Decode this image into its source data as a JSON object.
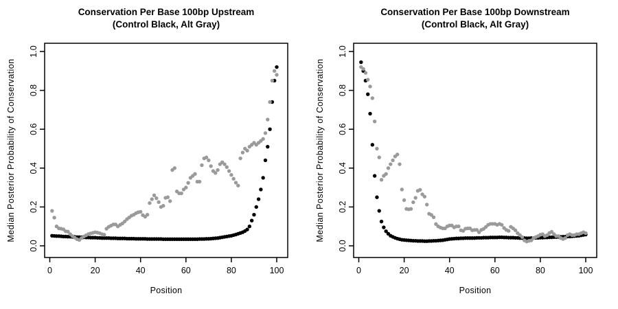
{
  "figure": {
    "bg_color": "#ffffff",
    "point_colors": {
      "control": "#000000",
      "alt": "#9a9a9a"
    },
    "axis_color": "#000000"
  },
  "chart_data": [
    {
      "type": "scatter",
      "panel": "upstream",
      "title": "Conservation Per Base 100bp Upstream",
      "subtitle": "(Control Black, Alt Gray)",
      "xlabel": "Position",
      "ylabel": "Median Posterior Probability of Conservation",
      "xticks": [
        0,
        20,
        40,
        60,
        80,
        100
      ],
      "yticks": [
        "0.0",
        "0.2",
        "0.4",
        "0.6",
        "0.8",
        "1.0"
      ],
      "xlim": [
        0,
        100
      ],
      "ylim": [
        0,
        1
      ],
      "grid": false,
      "x_start": 1,
      "x_step": 1,
      "series": [
        {
          "name": "Control",
          "color_key": "control",
          "values": [
            0.052,
            0.051,
            0.05,
            0.05,
            0.049,
            0.048,
            0.048,
            0.047,
            0.047,
            0.046,
            0.046,
            0.045,
            0.045,
            0.044,
            0.044,
            0.043,
            0.043,
            0.042,
            0.042,
            0.042,
            0.041,
            0.041,
            0.04,
            0.04,
            0.04,
            0.04,
            0.039,
            0.039,
            0.039,
            0.038,
            0.038,
            0.038,
            0.038,
            0.037,
            0.037,
            0.037,
            0.037,
            0.036,
            0.036,
            0.036,
            0.036,
            0.036,
            0.035,
            0.035,
            0.035,
            0.035,
            0.035,
            0.035,
            0.035,
            0.034,
            0.034,
            0.034,
            0.034,
            0.034,
            0.034,
            0.034,
            0.034,
            0.034,
            0.034,
            0.034,
            0.034,
            0.034,
            0.034,
            0.034,
            0.034,
            0.035,
            0.035,
            0.035,
            0.036,
            0.036,
            0.037,
            0.038,
            0.039,
            0.04,
            0.042,
            0.044,
            0.046,
            0.048,
            0.05,
            0.052,
            0.055,
            0.058,
            0.062,
            0.066,
            0.07,
            0.076,
            0.084,
            0.1,
            0.13,
            0.16,
            0.2,
            0.24,
            0.29,
            0.35,
            0.44,
            0.51,
            0.6,
            0.74,
            0.85,
            0.92
          ]
        },
        {
          "name": "Alt",
          "color_key": "alt",
          "values": [
            0.18,
            0.145,
            0.1,
            0.09,
            0.088,
            0.085,
            0.075,
            0.073,
            0.06,
            0.05,
            0.042,
            0.034,
            0.03,
            0.04,
            0.048,
            0.054,
            0.06,
            0.064,
            0.067,
            0.07,
            0.068,
            0.065,
            0.06,
            0.057,
            0.088,
            0.098,
            0.104,
            0.11,
            0.11,
            0.1,
            0.108,
            0.115,
            0.125,
            0.137,
            0.146,
            0.155,
            0.16,
            0.168,
            0.173,
            0.175,
            0.158,
            0.15,
            0.16,
            0.22,
            0.24,
            0.26,
            0.245,
            0.225,
            0.2,
            0.206,
            0.247,
            0.25,
            0.23,
            0.39,
            0.4,
            0.28,
            0.27,
            0.27,
            0.29,
            0.3,
            0.324,
            0.35,
            0.36,
            0.37,
            0.33,
            0.33,
            0.415,
            0.45,
            0.455,
            0.44,
            0.41,
            0.385,
            0.375,
            0.39,
            0.42,
            0.43,
            0.42,
            0.405,
            0.385,
            0.365,
            0.345,
            0.325,
            0.31,
            0.45,
            0.48,
            0.5,
            0.49,
            0.51,
            0.52,
            0.53,
            0.52,
            0.53,
            0.54,
            0.55,
            0.58,
            0.65,
            0.74,
            0.85,
            0.9,
            0.88
          ]
        }
      ]
    },
    {
      "type": "scatter",
      "panel": "downstream",
      "title": "Conservation Per Base 100bp Downstream",
      "subtitle": "(Control Black, Alt Gray)",
      "xlabel": "Position",
      "ylabel": "Median Posterior Probability of Conservation",
      "xticks": [
        0,
        20,
        40,
        60,
        80,
        100
      ],
      "yticks": [
        "0.0",
        "0.2",
        "0.4",
        "0.6",
        "0.8",
        "1.0"
      ],
      "xlim": [
        0,
        100
      ],
      "ylim": [
        0,
        1
      ],
      "grid": false,
      "x_start": 1,
      "x_step": 1,
      "series": [
        {
          "name": "Control",
          "color_key": "control",
          "values": [
            0.945,
            0.9,
            0.85,
            0.78,
            0.68,
            0.52,
            0.36,
            0.25,
            0.18,
            0.125,
            0.095,
            0.075,
            0.062,
            0.052,
            0.046,
            0.041,
            0.037,
            0.034,
            0.031,
            0.03,
            0.029,
            0.028,
            0.027,
            0.026,
            0.026,
            0.025,
            0.025,
            0.025,
            0.024,
            0.024,
            0.025,
            0.025,
            0.026,
            0.026,
            0.027,
            0.028,
            0.029,
            0.031,
            0.033,
            0.035,
            0.036,
            0.037,
            0.038,
            0.038,
            0.039,
            0.039,
            0.04,
            0.04,
            0.04,
            0.04,
            0.04,
            0.041,
            0.041,
            0.041,
            0.042,
            0.042,
            0.042,
            0.043,
            0.043,
            0.043,
            0.043,
            0.044,
            0.044,
            0.043,
            0.043,
            0.042,
            0.042,
            0.042,
            0.041,
            0.041,
            0.04,
            0.04,
            0.04,
            0.039,
            0.039,
            0.04,
            0.04,
            0.041,
            0.041,
            0.042,
            0.042,
            0.043,
            0.043,
            0.044,
            0.044,
            0.045,
            0.045,
            0.046,
            0.046,
            0.047,
            0.047,
            0.048,
            0.048,
            0.049,
            0.05,
            0.051,
            0.052,
            0.054,
            0.056,
            0.058
          ]
        },
        {
          "name": "Alt",
          "color_key": "alt",
          "values": [
            0.92,
            0.91,
            0.89,
            0.855,
            0.82,
            0.76,
            0.64,
            0.5,
            0.455,
            0.34,
            0.36,
            0.37,
            0.4,
            0.42,
            0.44,
            0.46,
            0.47,
            0.42,
            0.29,
            0.235,
            0.19,
            0.188,
            0.19,
            0.224,
            0.247,
            0.283,
            0.288,
            0.265,
            0.253,
            0.212,
            0.165,
            0.159,
            0.147,
            0.112,
            0.1,
            0.094,
            0.09,
            0.09,
            0.1,
            0.105,
            0.105,
            0.095,
            0.1,
            0.1,
            0.08,
            0.077,
            0.088,
            0.09,
            0.09,
            0.08,
            0.082,
            0.082,
            0.07,
            0.082,
            0.087,
            0.097,
            0.108,
            0.113,
            0.113,
            0.113,
            0.108,
            0.113,
            0.108,
            0.092,
            0.082,
            0.077,
            0.098,
            0.09,
            0.08,
            0.065,
            0.055,
            0.045,
            0.028,
            0.022,
            0.026,
            0.028,
            0.04,
            0.045,
            0.05,
            0.057,
            0.06,
            0.05,
            0.055,
            0.066,
            0.072,
            0.06,
            0.05,
            0.05,
            0.04,
            0.035,
            0.04,
            0.055,
            0.06,
            0.055,
            0.055,
            0.06,
            0.06,
            0.065,
            0.07,
            0.065
          ]
        }
      ]
    }
  ]
}
